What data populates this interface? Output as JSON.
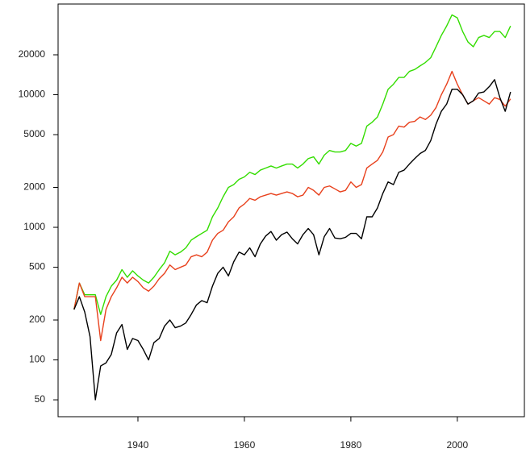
{
  "chart_data": {
    "type": "line",
    "log_y": true,
    "x": [
      1928,
      1929,
      1930,
      1931,
      1932,
      1933,
      1934,
      1935,
      1936,
      1937,
      1938,
      1939,
      1940,
      1941,
      1942,
      1943,
      1944,
      1945,
      1946,
      1947,
      1948,
      1949,
      1950,
      1951,
      1952,
      1953,
      1954,
      1955,
      1956,
      1957,
      1958,
      1959,
      1960,
      1961,
      1962,
      1963,
      1964,
      1965,
      1966,
      1967,
      1968,
      1969,
      1970,
      1971,
      1972,
      1973,
      1974,
      1975,
      1976,
      1977,
      1978,
      1979,
      1980,
      1981,
      1982,
      1983,
      1984,
      1985,
      1986,
      1987,
      1988,
      1989,
      1990,
      1991,
      1992,
      1993,
      1994,
      1995,
      1996,
      1997,
      1998,
      1999,
      2000,
      2001,
      2002,
      2003,
      2004,
      2005,
      2006,
      2007,
      2008,
      2009,
      2010
    ],
    "series": [
      {
        "color": "#33dd00",
        "values": [
          240,
          380,
          310,
          310,
          310,
          220,
          300,
          360,
          400,
          480,
          420,
          470,
          430,
          400,
          380,
          420,
          480,
          540,
          660,
          620,
          650,
          700,
          800,
          850,
          900,
          950,
          1200,
          1400,
          1700,
          2000,
          2100,
          2300,
          2400,
          2600,
          2500,
          2700,
          2800,
          2900,
          2800,
          2900,
          3000,
          3000,
          2800,
          3000,
          3300,
          3400,
          3000,
          3500,
          3800,
          3700,
          3700,
          3800,
          4300,
          4100,
          4300,
          5800,
          6200,
          6800,
          8500,
          11000,
          12000,
          13500,
          13500,
          15000,
          15500,
          16500,
          17500,
          19000,
          23000,
          28000,
          33000,
          40000,
          38000,
          30000,
          25000,
          23000,
          27000,
          28000,
          27000,
          30000,
          30000,
          27000,
          33000
        ]
      },
      {
        "color": "#e8401c",
        "values": [
          240,
          380,
          300,
          300,
          300,
          140,
          240,
          300,
          350,
          420,
          380,
          420,
          390,
          350,
          330,
          360,
          410,
          450,
          520,
          480,
          500,
          520,
          600,
          620,
          600,
          650,
          800,
          900,
          950,
          1100,
          1200,
          1400,
          1500,
          1650,
          1600,
          1700,
          1750,
          1800,
          1750,
          1800,
          1850,
          1800,
          1700,
          1750,
          2000,
          1900,
          1750,
          2000,
          2050,
          1950,
          1850,
          1900,
          2200,
          2000,
          2100,
          2800,
          3000,
          3200,
          3700,
          4800,
          5000,
          5800,
          5700,
          6200,
          6300,
          6800,
          6500,
          7000,
          8000,
          10000,
          12000,
          15000,
          12000,
          10000,
          8500,
          9000,
          9500,
          9000,
          8500,
          9500,
          9200,
          8200,
          9300
        ]
      },
      {
        "color": "#000000",
        "values": [
          240,
          300,
          230,
          150,
          50,
          90,
          95,
          110,
          160,
          185,
          120,
          145,
          140,
          120,
          100,
          135,
          145,
          180,
          200,
          175,
          180,
          190,
          220,
          260,
          280,
          270,
          360,
          450,
          500,
          430,
          550,
          650,
          620,
          700,
          600,
          750,
          860,
          930,
          800,
          880,
          920,
          820,
          750,
          880,
          980,
          880,
          620,
          850,
          980,
          830,
          820,
          840,
          900,
          900,
          820,
          1200,
          1200,
          1400,
          1800,
          2200,
          2100,
          2600,
          2700,
          3000,
          3300,
          3600,
          3800,
          4500,
          6000,
          7500,
          8500,
          11000,
          11000,
          10000,
          8500,
          9000,
          10300,
          10500,
          11500,
          13000,
          9500,
          7500,
          10500
        ]
      }
    ],
    "xlim": [
      1925,
      2012.6
    ],
    "xticks": [
      1940,
      1960,
      1980,
      2000
    ],
    "ylim": [
      37.3,
      48300
    ],
    "yticks": [
      50,
      100,
      200,
      500,
      1000,
      2000,
      5000,
      10000,
      20000
    ]
  }
}
